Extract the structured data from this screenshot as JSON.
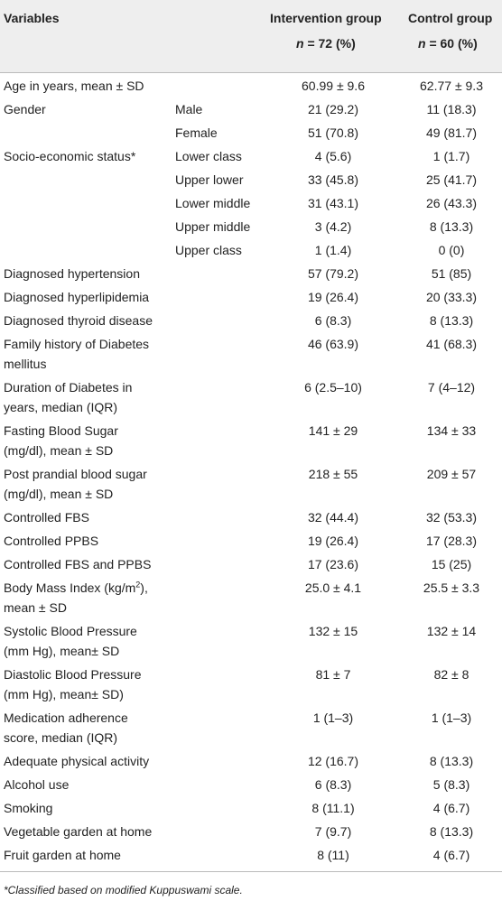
{
  "header": {
    "variables": "Variables",
    "intervention": {
      "title": "Intervention group",
      "n": "n",
      "count": "= 72 (%)"
    },
    "control": {
      "title": "Control group",
      "n": "n",
      "count": "= 60 (%)"
    }
  },
  "table": {
    "rows": [
      {
        "label": [
          "Age in years, mean ± SD"
        ],
        "intervention": "60.99 ± 9.6",
        "control": "62.77 ± 9.3"
      },
      {
        "label": [
          "Gender"
        ],
        "sub": "Male",
        "intervention": "21 (29.2)",
        "control": "11 (18.3)"
      },
      {
        "sub": "Female",
        "intervention": "51 (70.8)",
        "control": "49 (81.7)"
      },
      {
        "label": [
          "Socio-economic status*"
        ],
        "sub": "Lower class",
        "intervention": "4 (5.6)",
        "control": "1 (1.7)"
      },
      {
        "sub": "Upper lower",
        "intervention": "33 (45.8)",
        "control": "25 (41.7)"
      },
      {
        "sub": "Lower middle",
        "intervention": "31 (43.1)",
        "control": "26 (43.3)"
      },
      {
        "sub": "Upper middle",
        "intervention": "3 (4.2)",
        "control": "8 (13.3)"
      },
      {
        "sub": "Upper class",
        "intervention": "1 (1.4)",
        "control": "0 (0)"
      },
      {
        "label": [
          "Diagnosed hypertension"
        ],
        "intervention": "57 (79.2)",
        "control": "51 (85)"
      },
      {
        "label": [
          "Diagnosed hyperlipidemia"
        ],
        "intervention": "19 (26.4)",
        "control": "20 (33.3)"
      },
      {
        "label": [
          "Diagnosed thyroid disease"
        ],
        "intervention": "6 (8.3)",
        "control": "8 (13.3)"
      },
      {
        "label": [
          "Family history of Diabetes",
          "mellitus"
        ],
        "intervention": "46 (63.9)",
        "control": "41 (68.3)"
      },
      {
        "label": [
          "Duration of Diabetes in",
          "years, median (IQR)"
        ],
        "intervention": "6 (2.5–10)",
        "control": "7 (4–12)"
      },
      {
        "label": [
          "Fasting Blood Sugar",
          "(mg/dl), mean ± SD"
        ],
        "intervention": "141 ± 29",
        "control": "134 ± 33"
      },
      {
        "label": [
          "Post prandial blood sugar",
          "(mg/dl), mean ± SD"
        ],
        "intervention": "218 ± 55",
        "control": "209 ± 57"
      },
      {
        "label": [
          "Controlled FBS"
        ],
        "intervention": "32 (44.4)",
        "control": "32 (53.3)"
      },
      {
        "label": [
          "Controlled PPBS"
        ],
        "intervention": "19 (26.4)",
        "control": "17 (28.3)"
      },
      {
        "label": [
          "Controlled FBS and PPBS"
        ],
        "intervention": "17 (23.6)",
        "control": "15 (25)"
      },
      {
        "label": [
          [
            "Body Mass Index (kg/m",
            "2",
            "),"
          ],
          "mean ± SD"
        ],
        "intervention": "25.0 ± 4.1",
        "control": "25.5 ± 3.3"
      },
      {
        "label": [
          "Systolic Blood Pressure",
          "(mm Hg), mean± SD"
        ],
        "intervention": "132 ± 15",
        "control": "132 ± 14"
      },
      {
        "label": [
          "Diastolic Blood Pressure",
          "(mm Hg), mean± SD)"
        ],
        "intervention": "81 ± 7",
        "control": "82 ± 8"
      },
      {
        "label": [
          "Medication adherence",
          "score, median (IQR)"
        ],
        "intervention": "1 (1–3)",
        "control": "1 (1–3)"
      },
      {
        "label": [
          "Adequate physical activity"
        ],
        "intervention": "12 (16.7)",
        "control": "8 (13.3)"
      },
      {
        "label": [
          "Alcohol use"
        ],
        "intervention": "6 (8.3)",
        "control": "5 (8.3)"
      },
      {
        "label": [
          "Smoking"
        ],
        "intervention": "8 (11.1)",
        "control": "4 (6.7)"
      },
      {
        "label": [
          "Vegetable garden at home"
        ],
        "intervention": "7 (9.7)",
        "control": "8 (13.3)"
      },
      {
        "label": [
          "Fruit garden at home"
        ],
        "intervention": "8 (11)",
        "control": "4 (6.7)"
      }
    ]
  },
  "footnote": "*Classified based on modified Kuppuswami scale."
}
